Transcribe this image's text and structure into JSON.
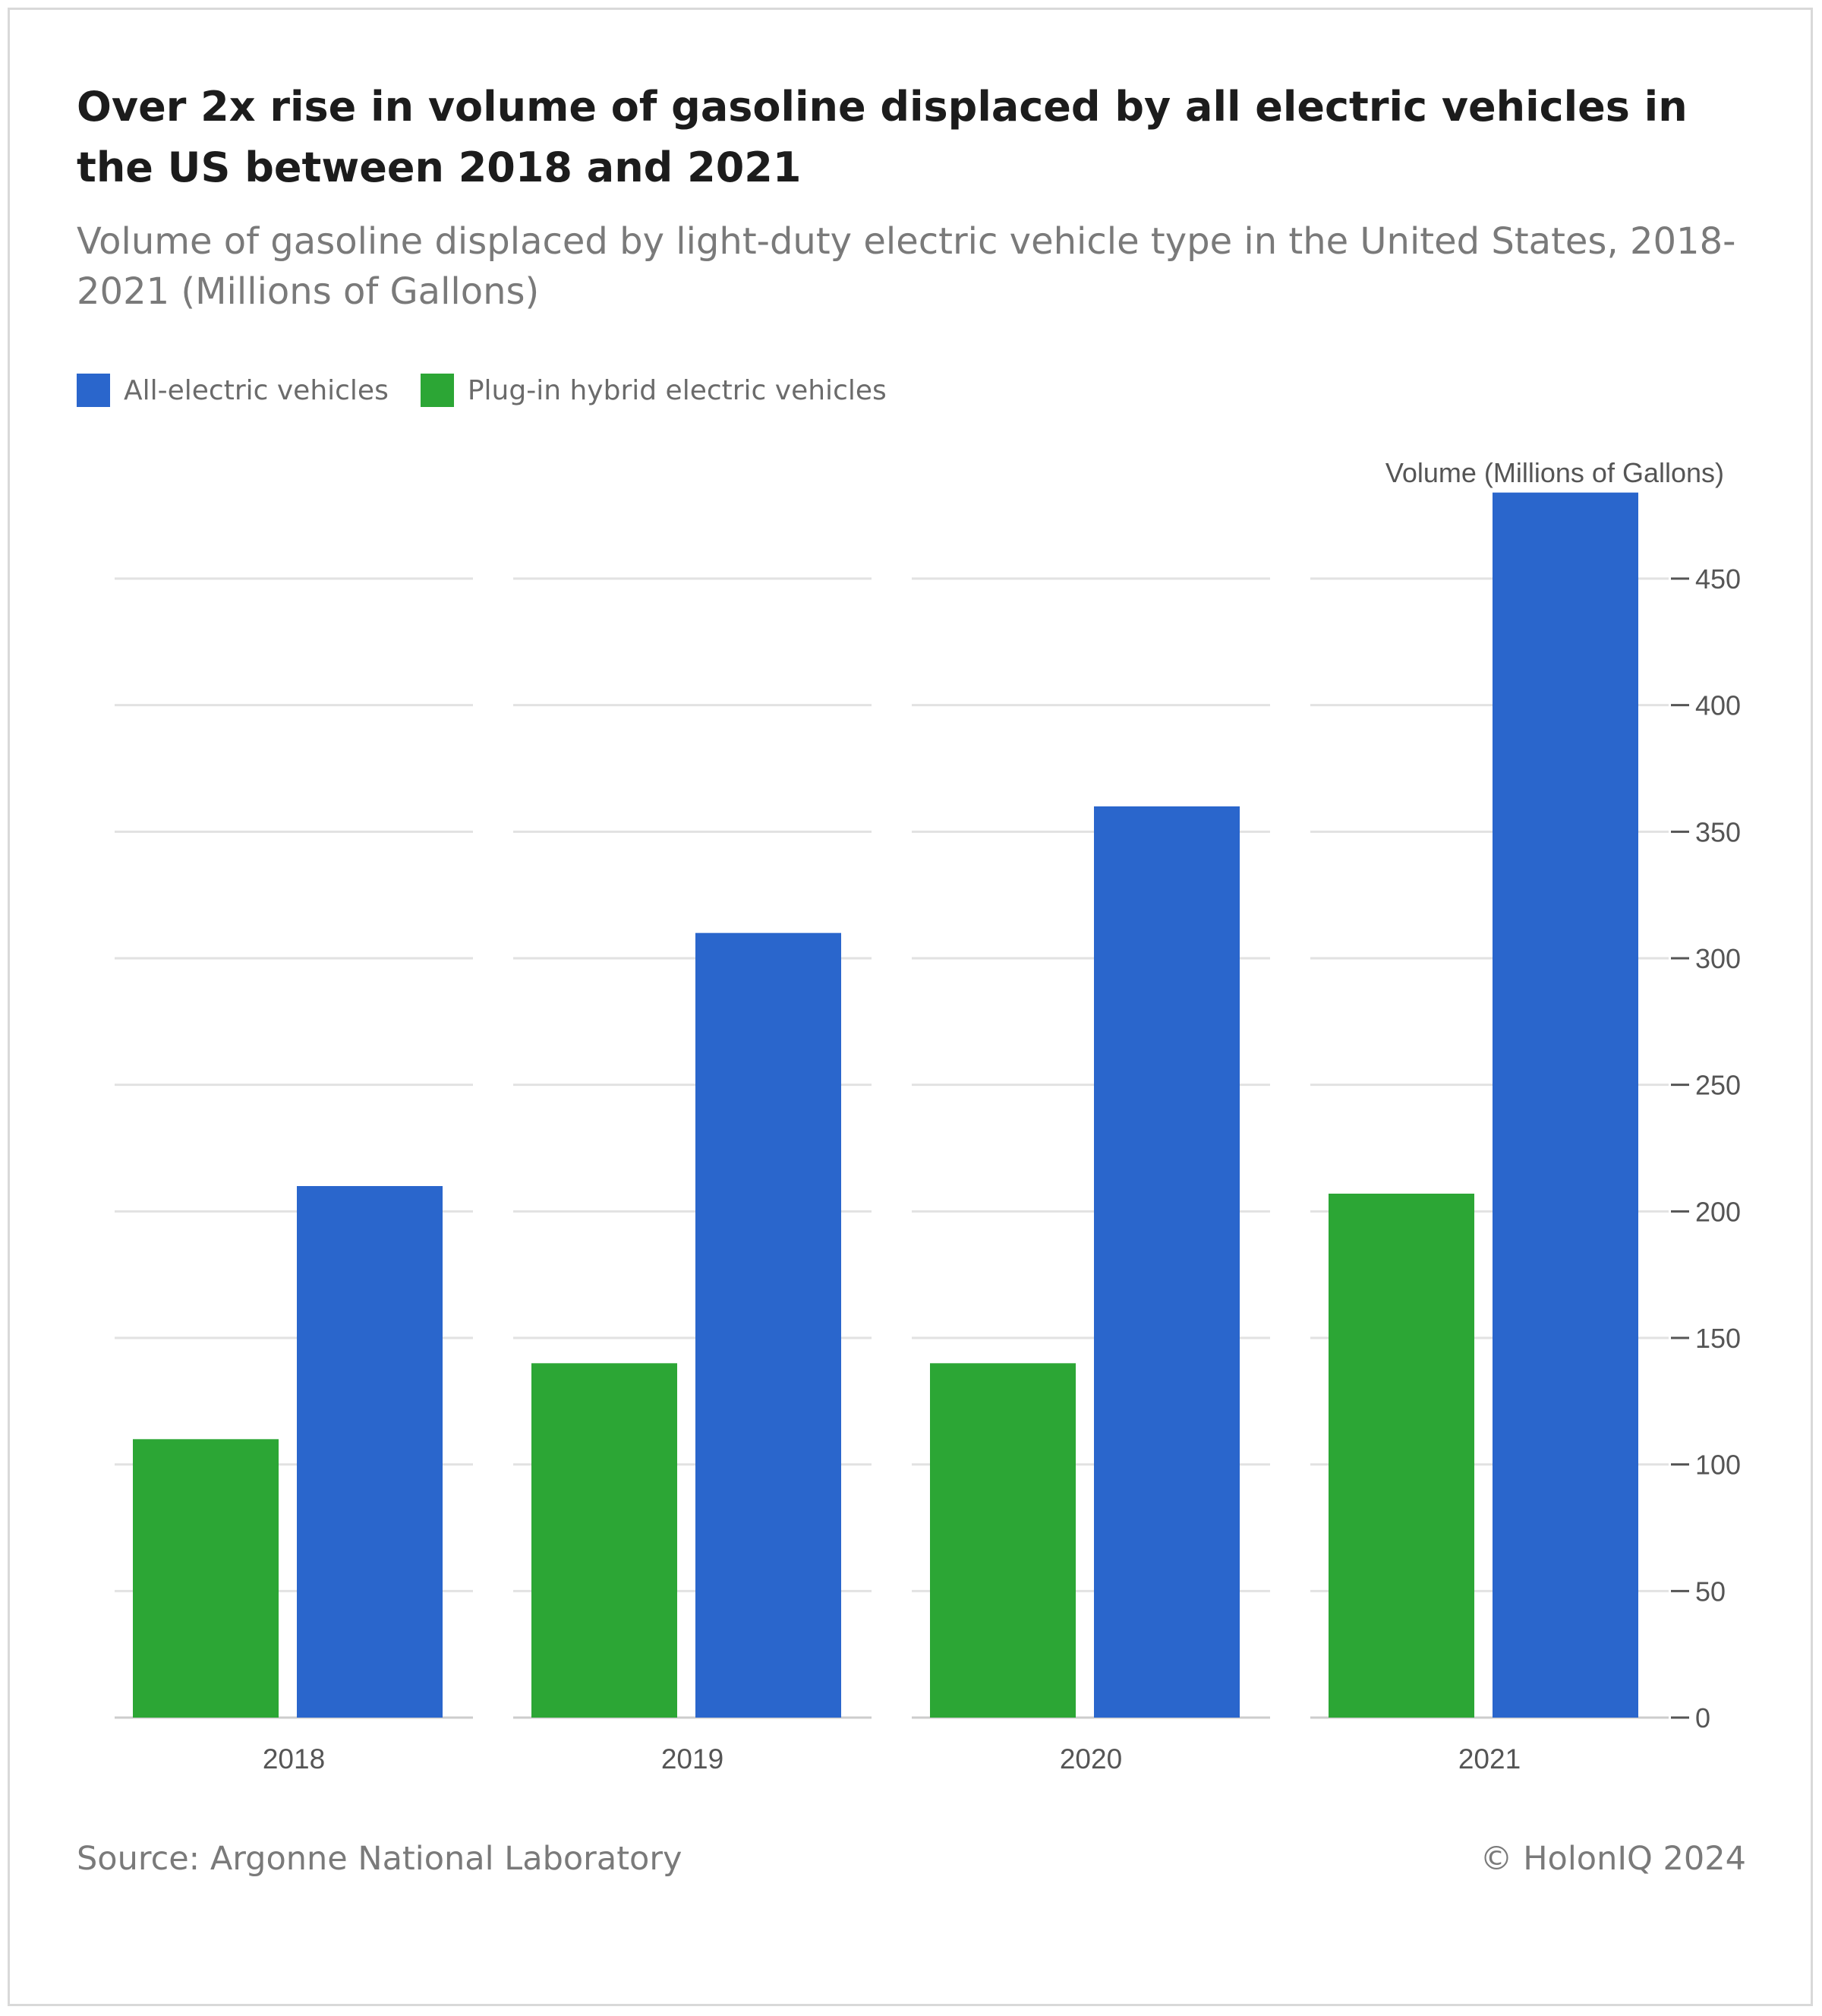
{
  "title": "Over 2x rise in volume of gasoline displaced by all electric vehicles in the US between 2018 and 2021",
  "subtitle": "Volume of gasoline displaced by light-duty electric vehicle type in the United States, 2018-2021 (Millions of Gallons)",
  "source": "Source: Argonne National Laboratory",
  "copyright": "© HolonIQ 2024",
  "chart_data": {
    "type": "bar",
    "categories": [
      "2018",
      "2019",
      "2020",
      "2021"
    ],
    "series": [
      {
        "name": "Plug-in hybrid electric vehicles",
        "color": "#2ca635",
        "values": [
          110,
          140,
          140,
          207
        ]
      },
      {
        "name": "All-electric vehicles",
        "color": "#2a66cc",
        "values": [
          210,
          310,
          360,
          484
        ]
      }
    ],
    "legend_order": [
      "All-electric vehicles",
      "Plug-in hybrid electric vehicles"
    ],
    "ylabel": "Volume (Millions of Gallons)",
    "ylim": [
      0,
      500
    ],
    "yticks": [
      "0",
      "50",
      "100",
      "150",
      "200",
      "250",
      "300",
      "350",
      "400",
      "450"
    ],
    "y_axis_side": "right",
    "grid": true,
    "legend_position": "top-left"
  }
}
